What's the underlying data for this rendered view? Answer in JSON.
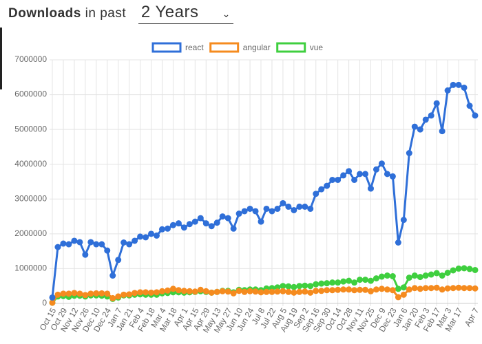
{
  "header": {
    "label_strong": "Downloads",
    "label_rest": "in past",
    "period": "2 Years"
  },
  "chart_data": {
    "type": "line",
    "categories": [
      "Oct 15",
      null,
      "Oct 29",
      null,
      "Nov 12",
      null,
      "Nov 26",
      null,
      "Dec 10",
      null,
      "Dec 24",
      null,
      "Jan 7",
      null,
      "Jan 21",
      null,
      "Feb 4",
      null,
      "Feb 18",
      null,
      "Mar 4",
      null,
      "Mar 18",
      null,
      "Apr 1",
      null,
      "Apr 15",
      null,
      "Apr 29",
      null,
      "May 13",
      null,
      "May 27",
      null,
      "Jun 10",
      null,
      "Jun 24",
      null,
      "Jul 8",
      null,
      "Jul 22",
      null,
      "Aug 5",
      null,
      "Aug 19",
      null,
      "Sep 2",
      null,
      "Sep 16",
      null,
      "Sep 30",
      null,
      "Oct 14",
      null,
      "Oct 28",
      null,
      "Nov 11",
      null,
      "Nov 25",
      null,
      "Dec 9",
      null,
      "Dec 23",
      null,
      "Jan 6",
      null,
      "Jan 20",
      null,
      "Feb 3",
      null,
      "Feb 17",
      null,
      "Mar 3",
      null,
      "Mar 17",
      null,
      null,
      "Apr 7"
    ],
    "series": [
      {
        "name": "react",
        "color": "#2f6fd8",
        "values": [
          170000,
          1620000,
          1720000,
          1700000,
          1800000,
          1760000,
          1400000,
          1760000,
          1700000,
          1700000,
          1520000,
          800000,
          1250000,
          1750000,
          1700000,
          1800000,
          1920000,
          1900000,
          2000000,
          1950000,
          2130000,
          2150000,
          2250000,
          2300000,
          2180000,
          2280000,
          2350000,
          2450000,
          2300000,
          2220000,
          2320000,
          2500000,
          2450000,
          2150000,
          2580000,
          2650000,
          2720000,
          2650000,
          2350000,
          2720000,
          2650000,
          2720000,
          2880000,
          2780000,
          2680000,
          2780000,
          2780000,
          2720000,
          3150000,
          3280000,
          3380000,
          3550000,
          3550000,
          3680000,
          3800000,
          3550000,
          3720000,
          3720000,
          3300000,
          3850000,
          4020000,
          3720000,
          3650000,
          1750000,
          2400000,
          4320000,
          5080000,
          5000000,
          5280000,
          5400000,
          5750000,
          4950000,
          6120000,
          6280000,
          6280000,
          6200000,
          5680000,
          5400000
        ]
      },
      {
        "name": "angular",
        "color": "#f58b1f",
        "values": [
          20000,
          250000,
          280000,
          280000,
          300000,
          280000,
          240000,
          280000,
          290000,
          290000,
          280000,
          150000,
          200000,
          250000,
          260000,
          300000,
          320000,
          320000,
          310000,
          320000,
          350000,
          370000,
          420000,
          380000,
          360000,
          350000,
          340000,
          390000,
          350000,
          310000,
          330000,
          350000,
          340000,
          290000,
          360000,
          330000,
          350000,
          340000,
          320000,
          330000,
          330000,
          340000,
          350000,
          330000,
          310000,
          330000,
          340000,
          310000,
          360000,
          360000,
          380000,
          380000,
          390000,
          400000,
          400000,
          380000,
          390000,
          390000,
          350000,
          400000,
          420000,
          400000,
          380000,
          180000,
          250000,
          400000,
          440000,
          420000,
          440000,
          440000,
          450000,
          400000,
          430000,
          440000,
          450000,
          440000,
          440000,
          430000
        ]
      },
      {
        "name": "vue",
        "color": "#3fcf3f",
        "values": [
          20000,
          200000,
          210000,
          190000,
          220000,
          220000,
          200000,
          230000,
          230000,
          220000,
          200000,
          130000,
          170000,
          230000,
          230000,
          250000,
          260000,
          250000,
          250000,
          250000,
          290000,
          300000,
          320000,
          320000,
          310000,
          320000,
          330000,
          350000,
          330000,
          310000,
          330000,
          360000,
          360000,
          320000,
          390000,
          380000,
          400000,
          400000,
          380000,
          430000,
          440000,
          460000,
          500000,
          490000,
          470000,
          500000,
          510000,
          500000,
          550000,
          570000,
          580000,
          600000,
          600000,
          630000,
          650000,
          600000,
          680000,
          680000,
          650000,
          720000,
          770000,
          800000,
          780000,
          420000,
          460000,
          740000,
          800000,
          760000,
          800000,
          830000,
          870000,
          800000,
          880000,
          950000,
          1000000,
          1010000,
          990000,
          960000
        ]
      }
    ],
    "ylim": [
      0,
      7000000
    ],
    "yticks": [
      0,
      1000000,
      2000000,
      3000000,
      4000000,
      5000000,
      6000000,
      7000000
    ],
    "grid": true,
    "legend": "top"
  }
}
